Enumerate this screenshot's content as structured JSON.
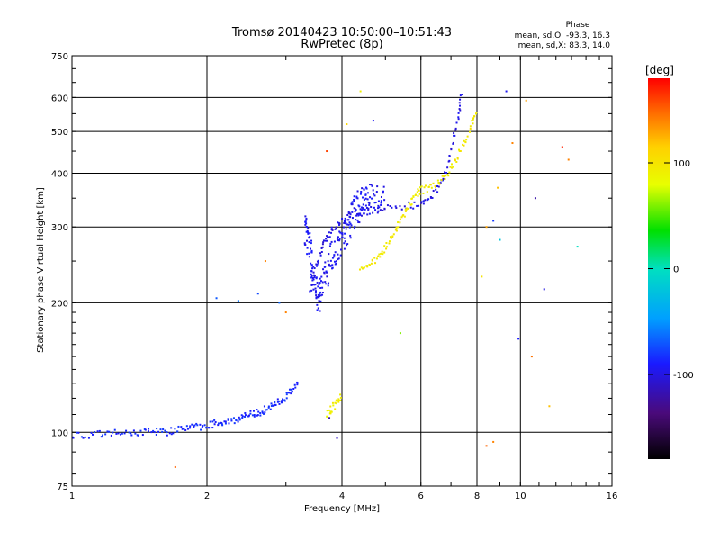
{
  "title": {
    "line1": "Tromsø 20140423 10:50:00–10:51:43",
    "line2": "RwPretec (8p)"
  },
  "legend_box": {
    "heading": "Phase",
    "line1": "mean, sd,O: -93.3, 16.3",
    "line2": "mean, sd,X:  83.3, 14.0"
  },
  "colorbar": {
    "unit_label": "[deg]",
    "ticks": [
      {
        "label": "100",
        "value": 100
      },
      {
        "label": "0",
        "value": 0
      },
      {
        "label": "-100",
        "value": -100
      }
    ],
    "range": [
      -180,
      180
    ]
  },
  "chart_data": {
    "type": "scatter",
    "xlabel": "Frequency [MHz]",
    "ylabel": "Stationary phase Virtual Height [km]",
    "xscale": "log",
    "yscale": "log",
    "xlim": [
      1,
      16
    ],
    "ylim": [
      75,
      750
    ],
    "xticks": [
      {
        "label": "1",
        "value": 1
      },
      {
        "label": "2",
        "value": 2
      },
      {
        "label": "4",
        "value": 4
      },
      {
        "label": "6",
        "value": 6
      },
      {
        "label": "8",
        "value": 8
      },
      {
        "label": "10",
        "value": 10
      },
      {
        "label": "16",
        "value": 16
      }
    ],
    "yticks": [
      {
        "label": "75",
        "value": 75
      },
      {
        "label": "100",
        "value": 100
      },
      {
        "label": "200",
        "value": 200
      },
      {
        "label": "300",
        "value": 300
      },
      {
        "label": "400",
        "value": 400
      },
      {
        "label": "500",
        "value": 500
      },
      {
        "label": "600",
        "value": 600
      },
      {
        "label": "750",
        "value": 750
      }
    ],
    "grid": true,
    "traces": [
      {
        "points": [
          [
            1.0,
            99
          ],
          [
            1.1,
            98
          ],
          [
            1.2,
            100
          ],
          [
            1.3,
            99
          ],
          [
            1.4,
            100
          ],
          [
            1.5,
            101
          ],
          [
            1.6,
            100
          ],
          [
            1.7,
            101
          ],
          [
            1.8,
            102
          ],
          [
            1.9,
            103
          ],
          [
            2.0,
            104
          ],
          [
            2.1,
            105
          ],
          [
            2.2,
            106
          ],
          [
            2.3,
            107
          ],
          [
            2.4,
            108
          ],
          [
            2.5,
            110
          ],
          [
            2.6,
            111
          ],
          [
            2.7,
            113
          ],
          [
            2.8,
            115
          ],
          [
            2.9,
            118
          ],
          [
            3.0,
            121
          ],
          [
            3.1,
            125
          ],
          [
            3.2,
            131
          ]
        ],
        "phase": -85
      },
      {
        "points": [
          [
            3.3,
            300
          ],
          [
            3.35,
            280
          ],
          [
            3.4,
            260
          ],
          [
            3.45,
            240
          ],
          [
            3.5,
            220
          ],
          [
            3.55,
            205
          ],
          [
            3.6,
            215
          ],
          [
            3.7,
            235
          ],
          [
            3.8,
            255
          ],
          [
            3.9,
            270
          ],
          [
            4.0,
            285
          ],
          [
            4.1,
            300
          ],
          [
            4.2,
            315
          ],
          [
            4.3,
            330
          ],
          [
            4.4,
            340
          ],
          [
            4.5,
            345
          ],
          [
            4.6,
            350
          ],
          [
            4.8,
            352
          ],
          [
            5.0,
            350
          ]
        ],
        "phase": -95
      },
      {
        "points": [
          [
            3.4,
            210
          ],
          [
            3.5,
            240
          ],
          [
            3.6,
            265
          ],
          [
            3.7,
            280
          ],
          [
            3.8,
            295
          ],
          [
            4.0,
            310
          ],
          [
            4.2,
            320
          ],
          [
            4.5,
            330
          ],
          [
            5.0,
            330
          ],
          [
            5.5,
            335
          ],
          [
            6.0,
            340
          ],
          [
            6.3,
            350
          ],
          [
            6.6,
            370
          ],
          [
            6.9,
            420
          ],
          [
            7.1,
            480
          ],
          [
            7.3,
            550
          ],
          [
            7.4,
            620
          ]
        ],
        "phase": -100
      },
      {
        "points": [
          [
            4.4,
            240
          ],
          [
            4.6,
            245
          ],
          [
            4.8,
            255
          ],
          [
            5.0,
            270
          ],
          [
            5.2,
            290
          ],
          [
            5.4,
            310
          ],
          [
            5.6,
            330
          ],
          [
            5.8,
            355
          ],
          [
            6.0,
            365
          ],
          [
            6.3,
            370
          ],
          [
            6.6,
            380
          ],
          [
            6.9,
            400
          ],
          [
            7.2,
            430
          ],
          [
            7.5,
            470
          ],
          [
            7.8,
            520
          ],
          [
            8.0,
            560
          ]
        ],
        "phase": 95
      },
      {
        "points": [
          [
            3.7,
            110
          ],
          [
            3.8,
            113
          ],
          [
            3.9,
            118
          ],
          [
            4.0,
            122
          ]
        ],
        "phase": 90
      }
    ],
    "points": [
      {
        "x": 2.1,
        "y": 205,
        "phase": -70
      },
      {
        "x": 2.35,
        "y": 202,
        "phase": -60
      },
      {
        "x": 2.6,
        "y": 210,
        "phase": -75
      },
      {
        "x": 2.9,
        "y": 200,
        "phase": -65
      },
      {
        "x": 1.7,
        "y": 83,
        "phase": 150
      },
      {
        "x": 2.7,
        "y": 250,
        "phase": 140
      },
      {
        "x": 3.0,
        "y": 190,
        "phase": 140
      },
      {
        "x": 3.7,
        "y": 450,
        "phase": 160
      },
      {
        "x": 4.1,
        "y": 520,
        "phase": 110
      },
      {
        "x": 4.4,
        "y": 620,
        "phase": 90
      },
      {
        "x": 4.7,
        "y": 530,
        "phase": -95
      },
      {
        "x": 5.4,
        "y": 170,
        "phase": 60
      },
      {
        "x": 8.2,
        "y": 230,
        "phase": 100
      },
      {
        "x": 8.4,
        "y": 300,
        "phase": 130
      },
      {
        "x": 8.7,
        "y": 310,
        "phase": -80
      },
      {
        "x": 8.9,
        "y": 370,
        "phase": 120
      },
      {
        "x": 9.0,
        "y": 280,
        "phase": -20
      },
      {
        "x": 9.3,
        "y": 620,
        "phase": -95
      },
      {
        "x": 9.6,
        "y": 470,
        "phase": 140
      },
      {
        "x": 9.9,
        "y": 165,
        "phase": -90
      },
      {
        "x": 10.3,
        "y": 590,
        "phase": 130
      },
      {
        "x": 10.6,
        "y": 150,
        "phase": 145
      },
      {
        "x": 10.8,
        "y": 350,
        "phase": -120
      },
      {
        "x": 11.3,
        "y": 215,
        "phase": -100
      },
      {
        "x": 11.6,
        "y": 115,
        "phase": 120
      },
      {
        "x": 12.4,
        "y": 460,
        "phase": 170
      },
      {
        "x": 12.8,
        "y": 430,
        "phase": 140
      },
      {
        "x": 13.4,
        "y": 270,
        "phase": 0
      },
      {
        "x": 8.4,
        "y": 93,
        "phase": 150
      },
      {
        "x": 8.7,
        "y": 95,
        "phase": 140
      },
      {
        "x": 3.9,
        "y": 97,
        "phase": -110
      },
      {
        "x": 3.75,
        "y": 108,
        "phase": -120
      }
    ]
  }
}
